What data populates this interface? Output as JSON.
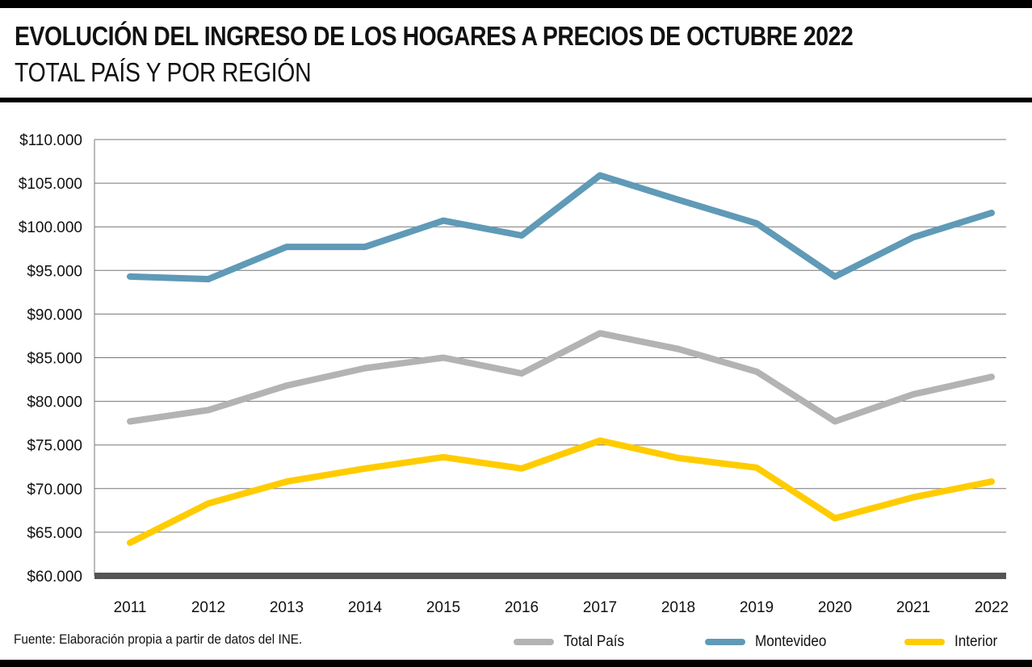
{
  "header": {
    "title": "EVOLUCIÓN DEL INGRESO DE LOS HOGARES A PRECIOS DE OCTUBRE 2022",
    "subtitle": "TOTAL PAÍS Y POR REGIÓN"
  },
  "footer": {
    "source": "Fuente: Elaboración propia a partir de datos del INE."
  },
  "chart_data": {
    "type": "line",
    "title": "EVOLUCIÓN DEL INGRESO DE LOS HOGARES A PRECIOS DE OCTUBRE 2022",
    "subtitle": "TOTAL PAÍS Y POR REGIÓN",
    "xlabel": "",
    "ylabel": "",
    "categories": [
      "2011",
      "2012",
      "2013",
      "2014",
      "2015",
      "2016",
      "2017",
      "2018",
      "2019",
      "2020",
      "2021",
      "2022"
    ],
    "ylim": [
      60000,
      110000
    ],
    "yticks": [
      110000,
      105000,
      100000,
      95000,
      90000,
      85000,
      80000,
      75000,
      70000,
      65000,
      60000
    ],
    "ytick_labels": [
      "$110.000",
      "$105.000",
      "$100.000",
      "$95.000",
      "$90.000",
      "$85.000",
      "$80.000",
      "$75.000",
      "$70.000",
      "$65.000",
      "$60.000"
    ],
    "grid": true,
    "legend_position": "bottom-right",
    "series": [
      {
        "name": "Total País",
        "color": "#b3b3b3",
        "values": [
          77700,
          79000,
          81800,
          83800,
          85000,
          83200,
          87800,
          86000,
          83400,
          77700,
          80800,
          82800
        ]
      },
      {
        "name": "Montevideo",
        "color": "#5f9ab7",
        "values": [
          94300,
          94000,
          97700,
          97700,
          100700,
          99000,
          105900,
          103100,
          100400,
          94300,
          98800,
          101600
        ]
      },
      {
        "name": "Interior",
        "color": "#ffcc00",
        "values": [
          63800,
          68300,
          70800,
          72300,
          73600,
          72300,
          75500,
          73500,
          72400,
          66600,
          69000,
          70800
        ]
      }
    ]
  }
}
